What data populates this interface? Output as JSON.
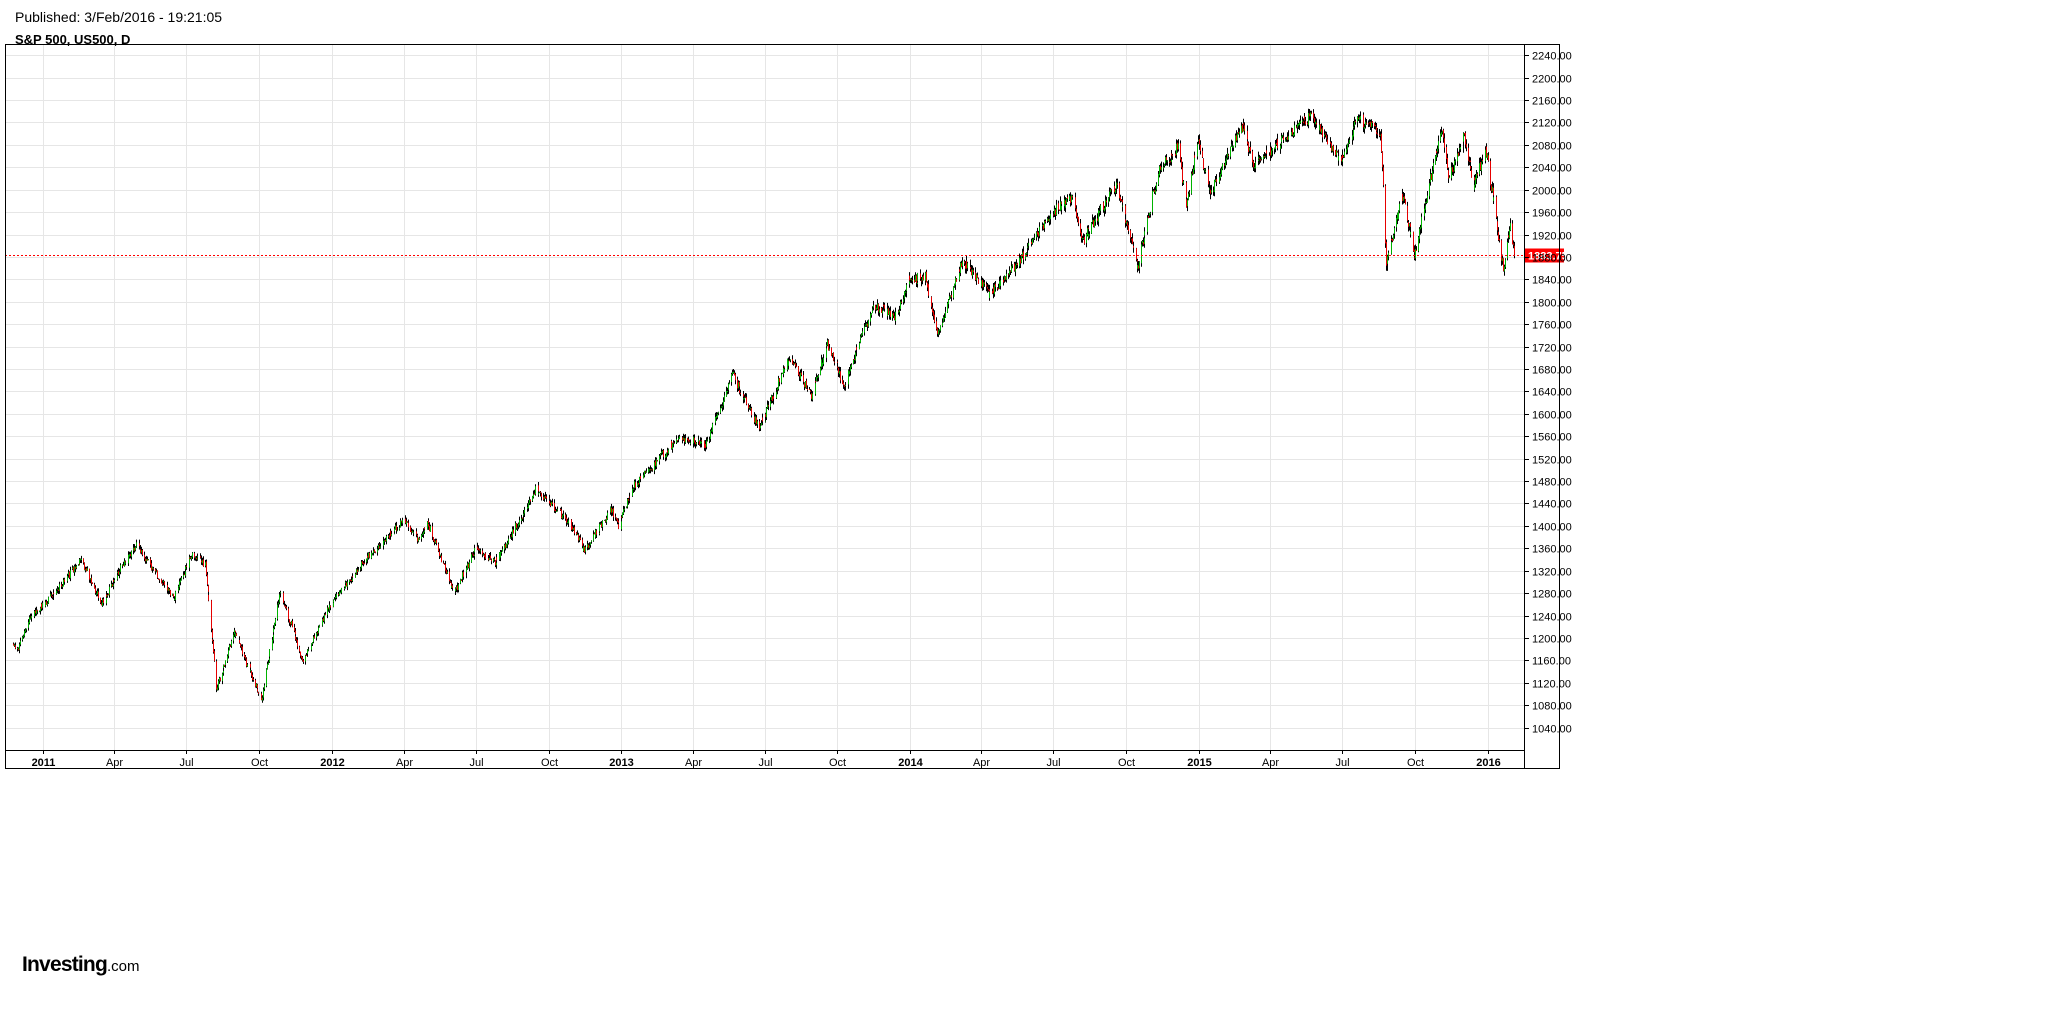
{
  "header": {
    "published": "Published: 3/Feb/2016 - 19:21:05",
    "symbol": "S&P 500, US500, D"
  },
  "logo": {
    "main": "Investing",
    "suffix": ".com"
  },
  "colors": {
    "up": "#00b300",
    "down": "#e60000",
    "price_line": "#ff0000",
    "grid": "#e6e6e6",
    "frame": "#000000"
  },
  "chart_data": {
    "type": "candlestick",
    "title": "S&P 500, US500, D",
    "x_range": [
      "2010-11-24",
      "2016-02-03"
    ],
    "ylim": [
      1000,
      2260
    ],
    "grid": true,
    "y_ticks": [
      1040,
      1080,
      1120,
      1160,
      1200,
      1240,
      1280,
      1320,
      1360,
      1400,
      1440,
      1480,
      1520,
      1560,
      1600,
      1640,
      1680,
      1720,
      1760,
      1800,
      1840,
      1880,
      1920,
      1960,
      2000,
      2040,
      2080,
      2120,
      2160,
      2200,
      2240
    ],
    "y_tick_labels": [
      "1040.00",
      "1080.00",
      "1120.00",
      "1160.00",
      "1200.00",
      "1240.00",
      "1280.00",
      "1320.00",
      "1360.00",
      "1400.00",
      "1440.00",
      "1480.00",
      "1520.00",
      "1560.00",
      "1600.00",
      "1640.00",
      "1680.00",
      "1720.00",
      "1760.00",
      "1800.00",
      "1840.00",
      "1880.00",
      "1920.00",
      "1960.00",
      "2000.00",
      "2040.00",
      "2080.00",
      "2120.00",
      "2160.00",
      "2200.00",
      "2240.00"
    ],
    "x_ticks": [
      {
        "date": "2011-01-01",
        "label": "2011",
        "bold": true
      },
      {
        "date": "2011-04-01",
        "label": "Apr"
      },
      {
        "date": "2011-07-01",
        "label": "Jul"
      },
      {
        "date": "2011-10-01",
        "label": "Oct"
      },
      {
        "date": "2012-01-01",
        "label": "2012",
        "bold": true
      },
      {
        "date": "2012-04-01",
        "label": "Apr"
      },
      {
        "date": "2012-07-01",
        "label": "Jul"
      },
      {
        "date": "2012-10-01",
        "label": "Oct"
      },
      {
        "date": "2013-01-01",
        "label": "2013",
        "bold": true
      },
      {
        "date": "2013-04-01",
        "label": "Apr"
      },
      {
        "date": "2013-07-01",
        "label": "Jul"
      },
      {
        "date": "2013-10-01",
        "label": "Oct"
      },
      {
        "date": "2014-01-01",
        "label": "2014",
        "bold": true
      },
      {
        "date": "2014-04-01",
        "label": "Apr"
      },
      {
        "date": "2014-07-01",
        "label": "Jul"
      },
      {
        "date": "2014-10-01",
        "label": "Oct"
      },
      {
        "date": "2015-01-01",
        "label": "2015",
        "bold": true
      },
      {
        "date": "2015-04-01",
        "label": "Apr"
      },
      {
        "date": "2015-07-01",
        "label": "Jul"
      },
      {
        "date": "2015-10-01",
        "label": "Oct"
      },
      {
        "date": "2016-01-01",
        "label": "2016",
        "bold": true
      }
    ],
    "last_price": 1883.75,
    "last_price_label": "1883.75",
    "close_path": [
      {
        "date": "2010-11-24",
        "close": 1190
      },
      {
        "date": "2010-11-30",
        "close": 1180
      },
      {
        "date": "2010-12-15",
        "close": 1235
      },
      {
        "date": "2011-01-15",
        "close": 1280
      },
      {
        "date": "2011-02-18",
        "close": 1340
      },
      {
        "date": "2011-03-16",
        "close": 1260
      },
      {
        "date": "2011-04-10",
        "close": 1330
      },
      {
        "date": "2011-04-29",
        "close": 1365
      },
      {
        "date": "2011-06-15",
        "close": 1270
      },
      {
        "date": "2011-07-07",
        "close": 1350
      },
      {
        "date": "2011-07-25",
        "close": 1330
      },
      {
        "date": "2011-08-08",
        "close": 1110
      },
      {
        "date": "2011-08-30",
        "close": 1210
      },
      {
        "date": "2011-09-22",
        "close": 1130
      },
      {
        "date": "2011-10-04",
        "close": 1090
      },
      {
        "date": "2011-10-27",
        "close": 1285
      },
      {
        "date": "2011-11-25",
        "close": 1160
      },
      {
        "date": "2011-12-30",
        "close": 1260
      },
      {
        "date": "2012-02-15",
        "close": 1345
      },
      {
        "date": "2012-04-01",
        "close": 1410
      },
      {
        "date": "2012-04-20",
        "close": 1375
      },
      {
        "date": "2012-05-01",
        "close": 1405
      },
      {
        "date": "2012-06-03",
        "close": 1280
      },
      {
        "date": "2012-07-01",
        "close": 1360
      },
      {
        "date": "2012-07-25",
        "close": 1335
      },
      {
        "date": "2012-08-25",
        "close": 1410
      },
      {
        "date": "2012-09-14",
        "close": 1465
      },
      {
        "date": "2012-10-25",
        "close": 1410
      },
      {
        "date": "2012-11-15",
        "close": 1355
      },
      {
        "date": "2012-12-18",
        "close": 1430
      },
      {
        "date": "2012-12-28",
        "close": 1400
      },
      {
        "date": "2013-01-15",
        "close": 1470
      },
      {
        "date": "2013-03-15",
        "close": 1560
      },
      {
        "date": "2013-04-18",
        "close": 1545
      },
      {
        "date": "2013-05-21",
        "close": 1670
      },
      {
        "date": "2013-06-24",
        "close": 1575
      },
      {
        "date": "2013-08-02",
        "close": 1705
      },
      {
        "date": "2013-08-28",
        "close": 1630
      },
      {
        "date": "2013-09-18",
        "close": 1725
      },
      {
        "date": "2013-10-09",
        "close": 1650
      },
      {
        "date": "2013-11-15",
        "close": 1795
      },
      {
        "date": "2013-12-13",
        "close": 1775
      },
      {
        "date": "2013-12-31",
        "close": 1840
      },
      {
        "date": "2014-01-20",
        "close": 1845
      },
      {
        "date": "2014-02-04",
        "close": 1740
      },
      {
        "date": "2014-03-07",
        "close": 1875
      },
      {
        "date": "2014-04-11",
        "close": 1815
      },
      {
        "date": "2014-05-20",
        "close": 1875
      },
      {
        "date": "2014-06-30",
        "close": 1960
      },
      {
        "date": "2014-07-24",
        "close": 1985
      },
      {
        "date": "2014-08-07",
        "close": 1910
      },
      {
        "date": "2014-09-18",
        "close": 2010
      },
      {
        "date": "2014-10-15",
        "close": 1860
      },
      {
        "date": "2014-11-10",
        "close": 2035
      },
      {
        "date": "2014-12-05",
        "close": 2075
      },
      {
        "date": "2014-12-16",
        "close": 1975
      },
      {
        "date": "2014-12-29",
        "close": 2090
      },
      {
        "date": "2015-01-15",
        "close": 1995
      },
      {
        "date": "2015-02-25",
        "close": 2115
      },
      {
        "date": "2015-03-10",
        "close": 2045
      },
      {
        "date": "2015-05-20",
        "close": 2130
      },
      {
        "date": "2015-06-29",
        "close": 2055
      },
      {
        "date": "2015-07-20",
        "close": 2125
      },
      {
        "date": "2015-08-18",
        "close": 2100
      },
      {
        "date": "2015-08-25",
        "close": 1870
      },
      {
        "date": "2015-09-16",
        "close": 1995
      },
      {
        "date": "2015-09-29",
        "close": 1880
      },
      {
        "date": "2015-11-03",
        "close": 2110
      },
      {
        "date": "2015-11-13",
        "close": 2020
      },
      {
        "date": "2015-12-01",
        "close": 2100
      },
      {
        "date": "2015-12-14",
        "close": 2005
      },
      {
        "date": "2015-12-29",
        "close": 2075
      },
      {
        "date": "2016-01-20",
        "close": 1860
      },
      {
        "date": "2016-01-29",
        "close": 1940
      },
      {
        "date": "2016-02-03",
        "close": 1883.75
      }
    ]
  }
}
